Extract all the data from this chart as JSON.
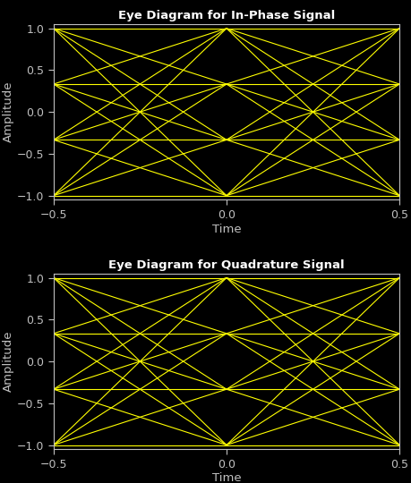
{
  "title1": "Eye Diagram for In-Phase Signal",
  "title2": "Eye Diagram for Quadrature Signal",
  "xlabel": "Time",
  "ylabel": "Amplitude",
  "line_color": "#ffff00",
  "bg_color": "#000000",
  "ax_color": "#000000",
  "tick_color": "#c0c0c0",
  "label_color": "#c0c0c0",
  "title_color": "#ffffff",
  "xlim": [
    -0.5,
    0.5
  ],
  "ylim": [
    -1.05,
    1.05
  ],
  "xticks": [
    -0.5,
    0,
    0.5
  ],
  "yticks": [
    -1,
    -0.5,
    0,
    0.5,
    1
  ],
  "levels": [
    -1,
    -0.3333,
    0.3333,
    1
  ],
  "linewidth": 0.8,
  "figwidth": 4.6,
  "figheight": 5.4,
  "dpi": 100
}
